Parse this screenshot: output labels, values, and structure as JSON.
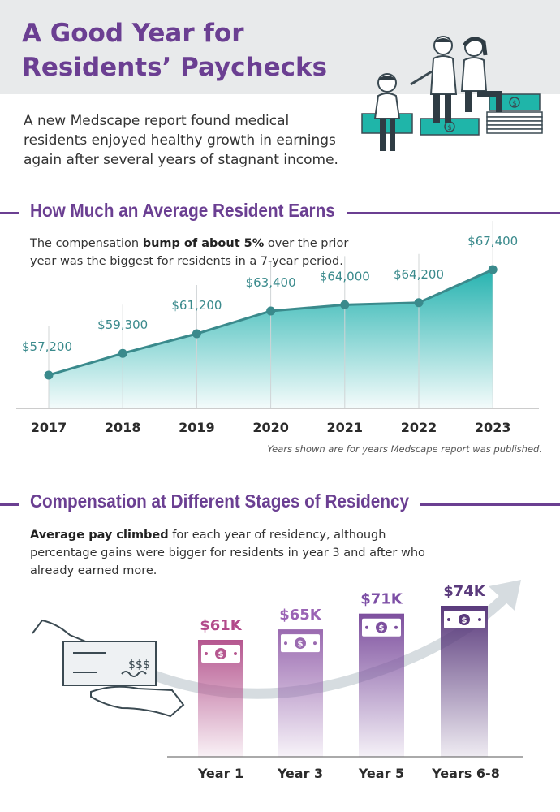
{
  "header": {
    "title_line1": "A Good Year for",
    "title_line2": "Residents’ Paychecks",
    "intro": "A new Medscape report found medical residents enjoyed healthy growth in earnings again after several years of stagnant income."
  },
  "section1": {
    "heading": "How Much an Average Resident Earns",
    "text_pre": "The compensation ",
    "text_bold": "bump of about 5%",
    "text_post": " over the prior year was the biggest for residents in a 7-year period.",
    "note": "Years shown are for years Medscape report was published."
  },
  "section2": {
    "heading": "Compensation at Different Stages of Residency",
    "text_bold": "Average pay climbed",
    "text_post": " for each year of residency, although percentage gains were bigger for residents in year 3 and after who already earned more.",
    "check_amount": "$$$"
  },
  "chart_data": [
    {
      "type": "area",
      "categories": [
        "2017",
        "2018",
        "2019",
        "2020",
        "2021",
        "2022",
        "2023"
      ],
      "values": [
        57200,
        59300,
        61200,
        63400,
        64000,
        64200,
        67400
      ],
      "labels": [
        "$57,200",
        "$59,300",
        "$61,200",
        "$63,400",
        "$64,000",
        "$64,200",
        "$67,400"
      ],
      "ylim": [
        55000,
        68500
      ],
      "grid": false,
      "colors": {
        "line": "#3a8a8c",
        "fill_top": "#27b3b0",
        "label": "#3a8a8c"
      }
    },
    {
      "type": "bar",
      "categories": [
        "Year 1",
        "Year 3",
        "Year 5",
        "Years 6-8"
      ],
      "values": [
        61000,
        65000,
        71000,
        74000
      ],
      "labels": [
        "$61K",
        "$65K",
        "$71K",
        "$74K"
      ],
      "colors": [
        "#b5568f",
        "#9a6ab0",
        "#7d4f9e",
        "#5a3a7c"
      ],
      "label_colors": [
        "#b24a8a",
        "#9a63b5",
        "#7d4fa6",
        "#5a3a7c"
      ]
    }
  ]
}
